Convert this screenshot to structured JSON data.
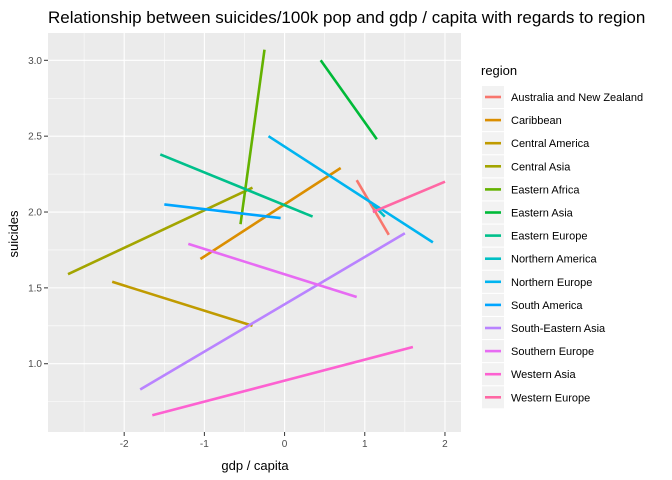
{
  "chart_data": {
    "type": "line",
    "title": "Relationship between suicides/100k pop and gdp / capita with regards to region",
    "xlabel": "gdp / capita",
    "ylabel": "suicides",
    "xlim": [
      -2.95,
      2.2
    ],
    "ylim": [
      0.55,
      3.18
    ],
    "x_ticks": [
      -2,
      -1,
      0,
      1,
      2
    ],
    "y_ticks": [
      1.0,
      1.5,
      2.0,
      2.5,
      3.0
    ],
    "x_tick_labels": [
      "-2",
      "-1",
      "0",
      "1",
      "2"
    ],
    "y_tick_labels": [
      "1.0",
      "1.5",
      "2.0",
      "2.5",
      "3.0"
    ],
    "grid": true,
    "legend": {
      "title": "region",
      "position": "right"
    },
    "series": [
      {
        "name": "Australia and New Zealand",
        "color": "#F8766D",
        "points": [
          [
            0.9,
            2.21
          ],
          [
            1.3,
            1.85
          ]
        ]
      },
      {
        "name": "Caribbean",
        "color": "#DB8E00",
        "points": [
          [
            -1.05,
            1.69
          ],
          [
            0.7,
            2.29
          ]
        ]
      },
      {
        "name": "Central America",
        "color": "#C09B00",
        "points": [
          [
            -2.15,
            1.54
          ],
          [
            -0.4,
            1.25
          ]
        ]
      },
      {
        "name": "Central Asia",
        "color": "#A3A500",
        "points": [
          [
            -2.7,
            1.59
          ],
          [
            -0.4,
            2.16
          ]
        ]
      },
      {
        "name": "Eastern Africa",
        "color": "#64B200",
        "points": [
          [
            -0.55,
            1.92
          ],
          [
            -0.25,
            3.07
          ]
        ]
      },
      {
        "name": "Eastern Asia",
        "color": "#00BA38",
        "points": [
          [
            0.45,
            3.0
          ],
          [
            1.15,
            2.48
          ]
        ]
      },
      {
        "name": "Eastern Europe",
        "color": "#00C08B",
        "points": [
          [
            -1.55,
            2.38
          ],
          [
            0.35,
            1.97
          ]
        ]
      },
      {
        "name": "Northern America",
        "color": "#00BFC4",
        "points": [
          [
            1.1,
            2.05
          ],
          [
            1.25,
            1.97
          ]
        ]
      },
      {
        "name": "Northern Europe",
        "color": "#00B4F0",
        "points": [
          [
            -0.2,
            2.5
          ],
          [
            1.85,
            1.8
          ]
        ]
      },
      {
        "name": "South America",
        "color": "#00A5FF",
        "points": [
          [
            -1.5,
            2.05
          ],
          [
            -0.05,
            1.96
          ]
        ]
      },
      {
        "name": "South-Eastern Asia",
        "color": "#B983FF",
        "points": [
          [
            -1.8,
            0.83
          ],
          [
            1.5,
            1.86
          ]
        ]
      },
      {
        "name": "Southern Europe",
        "color": "#E76BF3",
        "points": [
          [
            -1.2,
            1.79
          ],
          [
            0.9,
            1.44
          ]
        ]
      },
      {
        "name": "Western Asia",
        "color": "#FD61D1",
        "points": [
          [
            -1.65,
            0.66
          ],
          [
            1.6,
            1.11
          ]
        ]
      },
      {
        "name": "Western Europe",
        "color": "#FF67A4",
        "points": [
          [
            1.1,
            2.0
          ],
          [
            2.0,
            2.2
          ]
        ]
      }
    ]
  }
}
